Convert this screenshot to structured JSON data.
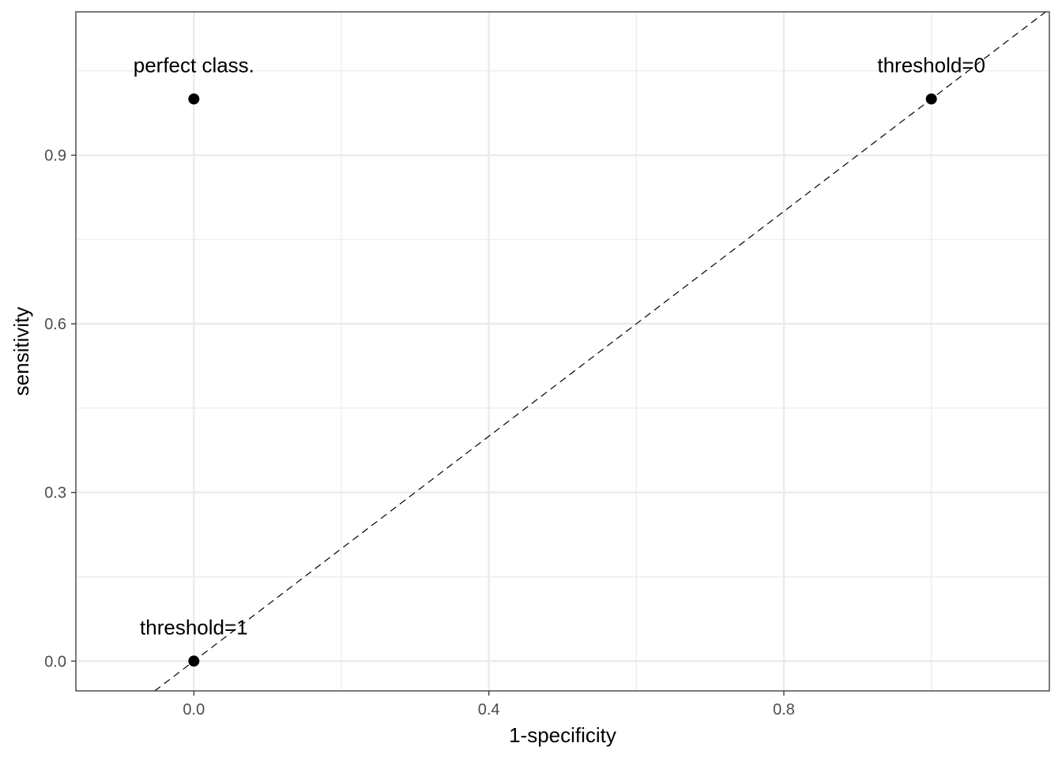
{
  "chart_data": {
    "type": "scatter",
    "xlabel": "1-specificity",
    "ylabel": "sensitivity",
    "xlim": [
      -0.16,
      1.16
    ],
    "ylim": [
      -0.053,
      1.155
    ],
    "x_ticks": [
      {
        "value": 0.0,
        "label": "0.0"
      },
      {
        "value": 0.4,
        "label": "0.4"
      },
      {
        "value": 0.8,
        "label": "0.8"
      }
    ],
    "x_minor": [
      -0.2,
      0.2,
      0.6,
      1.0
    ],
    "y_ticks": [
      {
        "value": 0.0,
        "label": "0.0"
      },
      {
        "value": 0.3,
        "label": "0.3"
      },
      {
        "value": 0.6,
        "label": "0.6"
      },
      {
        "value": 0.9,
        "label": "0.9"
      }
    ],
    "y_minor": [
      0.15,
      0.45,
      0.75,
      1.05
    ],
    "grid": true,
    "points": [
      {
        "x": 0,
        "y": 1,
        "label": "perfect class."
      },
      {
        "x": 1,
        "y": 1,
        "label": "threshold=0"
      },
      {
        "x": 0,
        "y": 0,
        "label": "threshold=1"
      }
    ],
    "reference_line": {
      "slope": 1,
      "intercept": 0,
      "style": "dashed"
    },
    "colors": {
      "background": "#ffffff",
      "grid": "#ebebeb",
      "border": "#333333",
      "points": "#000000"
    }
  }
}
